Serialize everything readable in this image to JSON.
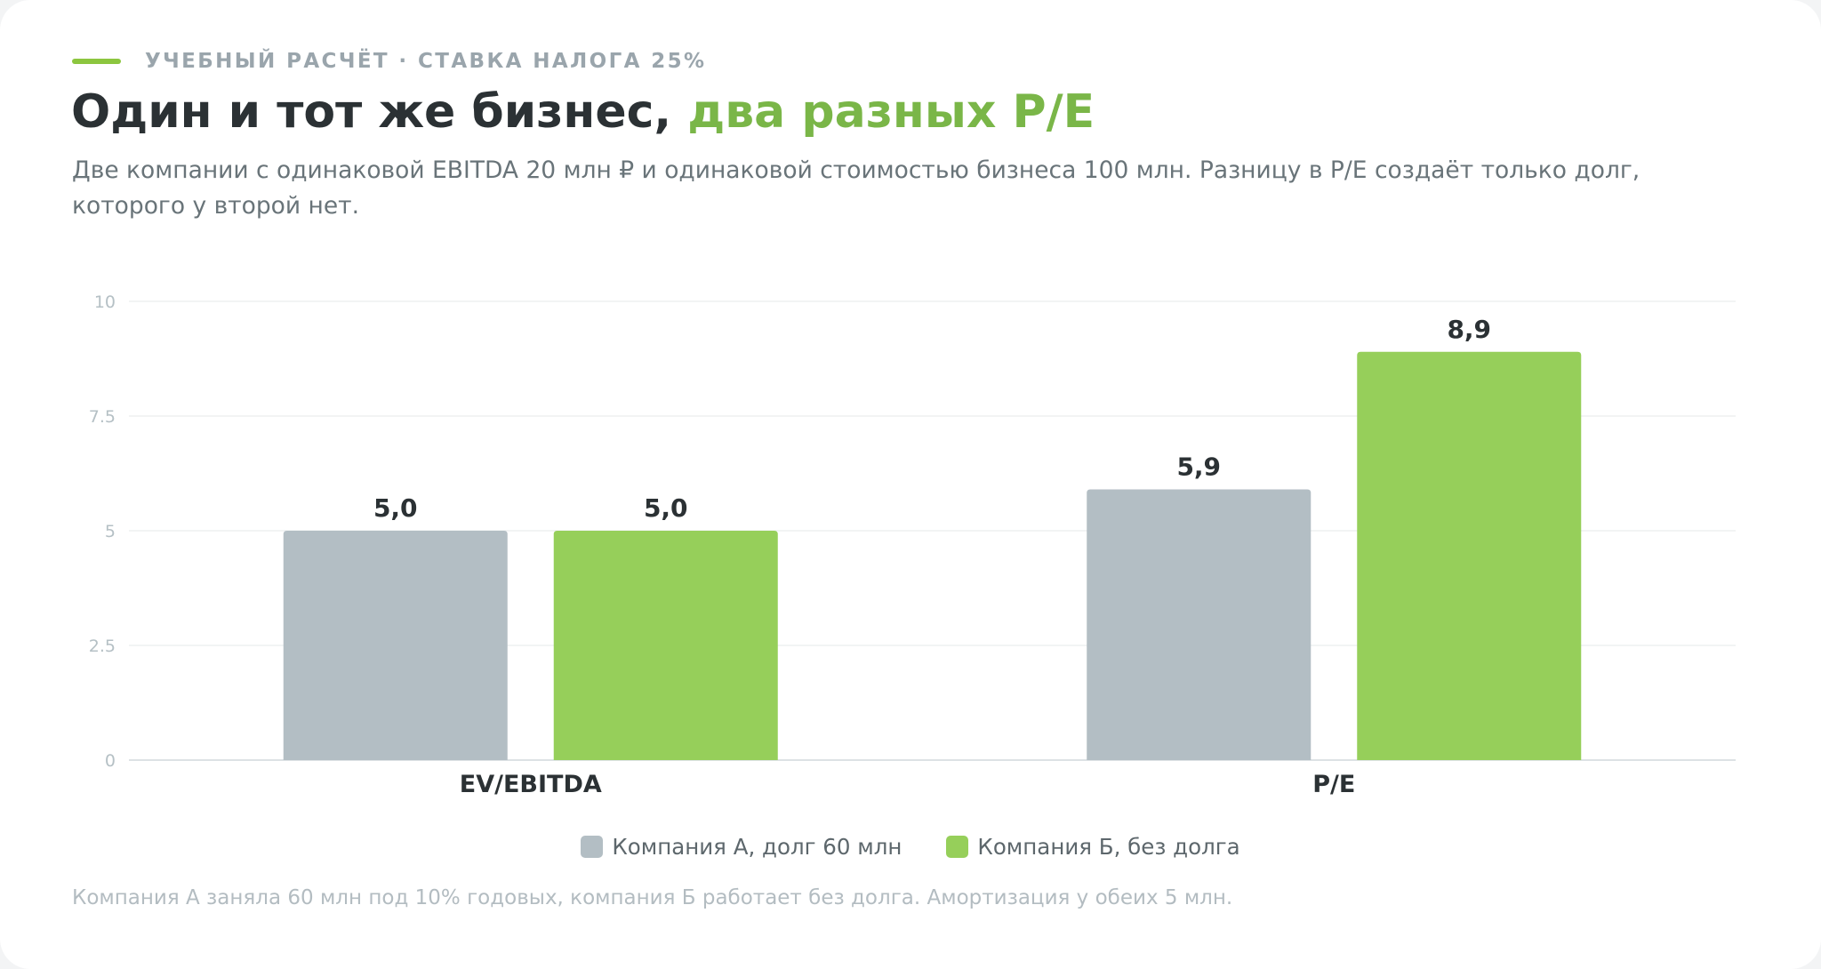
{
  "header": {
    "kicker": "УЧЕБНЫЙ РАСЧЁТ · СТАВКА НАЛОГА 25%",
    "title_main": "Один и тот же бизнес,",
    "title_accent": "два разных P/E",
    "subtitle": "Две компании с одинаковой EBITDA 20 млн ₽ и одинаковой стоимостью бизнеса 100 млн. Разницу в P/E создаёт только долг, которого у второй нет."
  },
  "colors": {
    "accent": "#7ab648",
    "company_a": "#b3bec4",
    "company_b": "#96cf5a"
  },
  "chart_data": {
    "type": "bar",
    "categories": [
      "EV/EBITDA",
      "P/E"
    ],
    "series": [
      {
        "name": "Компания А, долг 60 млн",
        "values": [
          5.0,
          5.9
        ],
        "labels": [
          "5,0",
          "5,9"
        ]
      },
      {
        "name": "Компания Б, без долга",
        "values": [
          5.0,
          8.9
        ],
        "labels": [
          "5,0",
          "8,9"
        ]
      }
    ],
    "ylim": [
      0,
      10
    ],
    "yticks": [
      0,
      2.5,
      5,
      7.5,
      10
    ],
    "ytick_labels": [
      "0",
      "2.5",
      "5",
      "7.5",
      "10"
    ],
    "grid": true,
    "legend": "bottom-center",
    "xlabel": "",
    "ylabel": ""
  },
  "footnote": "Компания А заняла 60 млн под 10% годовых, компания Б работает без долга. Амортизация у обеих 5 млн."
}
